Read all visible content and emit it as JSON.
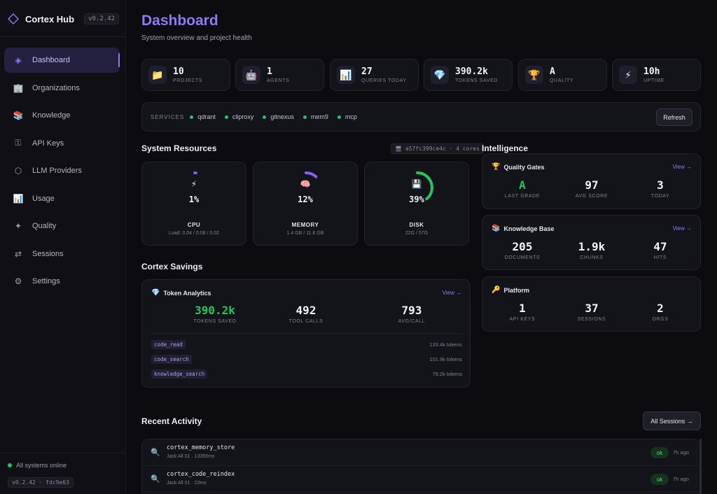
{
  "brand": {
    "name": "Cortex Hub",
    "version": "v0.2.42"
  },
  "sidebar": {
    "items": [
      {
        "label": "Dashboard",
        "icon": "diamond-icon",
        "glyph": "◈",
        "active": true
      },
      {
        "label": "Organizations",
        "icon": "building-icon",
        "glyph": "🏢"
      },
      {
        "label": "Knowledge",
        "icon": "books-icon",
        "glyph": "📚"
      },
      {
        "label": "API Keys",
        "icon": "key-icon",
        "glyph": "⚿"
      },
      {
        "label": "LLM Providers",
        "icon": "hexagon-icon",
        "glyph": "⬡"
      },
      {
        "label": "Usage",
        "icon": "bar-chart-icon",
        "glyph": "📊"
      },
      {
        "label": "Quality",
        "icon": "sparkle-icon",
        "glyph": "✦"
      },
      {
        "label": "Sessions",
        "icon": "arrows-icon",
        "glyph": "⇄"
      },
      {
        "label": "Settings",
        "icon": "gear-icon",
        "glyph": "⚙"
      }
    ],
    "status": "All systems online",
    "build": "v0.2.42 · fdc9e63"
  },
  "header": {
    "title": "Dashboard",
    "subtitle": "System overview and project health"
  },
  "stats": [
    {
      "value": "10",
      "label": "PROJECTS",
      "icon": "folder-icon",
      "glyph": "📁"
    },
    {
      "value": "1",
      "label": "AGENTS",
      "icon": "robot-icon",
      "glyph": "🤖"
    },
    {
      "value": "27",
      "label": "QUERIES TODAY",
      "icon": "bar-chart-icon",
      "glyph": "📊"
    },
    {
      "value": "390.2k",
      "label": "TOKENS SAVED",
      "icon": "gem-icon",
      "glyph": "💎"
    },
    {
      "value": "A",
      "label": "QUALITY",
      "icon": "trophy-icon",
      "glyph": "🏆"
    },
    {
      "value": "10h",
      "label": "UPTIME",
      "icon": "lightning-icon",
      "glyph": "⚡"
    }
  ],
  "services": {
    "label": "SERVICES",
    "items": [
      "qdrant",
      "cliproxy",
      "gitnexus",
      "mem9",
      "mcp"
    ],
    "refresh": "Refresh"
  },
  "resources": {
    "title": "System Resources",
    "host": "🖥 a57fc399ce4c · 4 cores",
    "items": [
      {
        "name": "CPU",
        "percent": 1,
        "pct_label": "1%",
        "sub": "Load: 0.04 / 0.08 / 0.02",
        "glyph": "⚡",
        "icon": "lightning-icon",
        "color": "#6366f1"
      },
      {
        "name": "MEMORY",
        "percent": 12,
        "pct_label": "12%",
        "sub": "1.4 GB / 11.8 GB",
        "glyph": "🧠",
        "icon": "brain-icon",
        "color": "#8b5cf6"
      },
      {
        "name": "DISK",
        "percent": 39,
        "pct_label": "39%",
        "sub": "22G / 57G",
        "glyph": "💾",
        "icon": "floppy-icon",
        "color": "#22c55e"
      }
    ]
  },
  "savings": {
    "title": "Cortex Savings",
    "card_title": "Token Analytics",
    "view": "View →",
    "metrics": [
      {
        "value": "390.2k",
        "label": "TOKENS SAVED",
        "color": "#22c55e"
      },
      {
        "value": "492",
        "label": "TOOL CALLS"
      },
      {
        "value": "793",
        "label": "AVG/CALL"
      }
    ],
    "tools": [
      {
        "name": "code_read",
        "tokens": "133.4k tokens"
      },
      {
        "name": "code_search",
        "tokens": "101.9k tokens"
      },
      {
        "name": "knowledge_search",
        "tokens": "79.2k tokens"
      }
    ]
  },
  "intelligence": {
    "title": "Intelligence",
    "quality": {
      "title": "Quality Gates",
      "view": "View →",
      "metrics": [
        {
          "value": "A",
          "label": "LAST GRADE",
          "color": "#22c55e"
        },
        {
          "value": "97",
          "label": "AVG SCORE"
        },
        {
          "value": "3",
          "label": "TODAY"
        }
      ]
    },
    "knowledge": {
      "title": "Knowledge Base",
      "view": "View →",
      "metrics": [
        {
          "value": "205",
          "label": "DOCUMENTS"
        },
        {
          "value": "1.9k",
          "label": "CHUNKS"
        },
        {
          "value": "47",
          "label": "HITS"
        }
      ]
    },
    "platform": {
      "title": "Platform",
      "metrics": [
        {
          "value": "1",
          "label": "API KEYS"
        },
        {
          "value": "37",
          "label": "SESSIONS"
        },
        {
          "value": "2",
          "label": "ORGS"
        }
      ]
    }
  },
  "activity": {
    "title": "Recent Activity",
    "all_sessions": "All Sessions →",
    "rows": [
      {
        "name": "cortex_memory_store",
        "meta": "Jack All 01 · 13355ms",
        "status": "ok",
        "time": "7h ago"
      },
      {
        "name": "cortex_code_reindex",
        "meta": "Jack All 01 · 23ms",
        "status": "ok",
        "time": "7h ago"
      }
    ]
  }
}
